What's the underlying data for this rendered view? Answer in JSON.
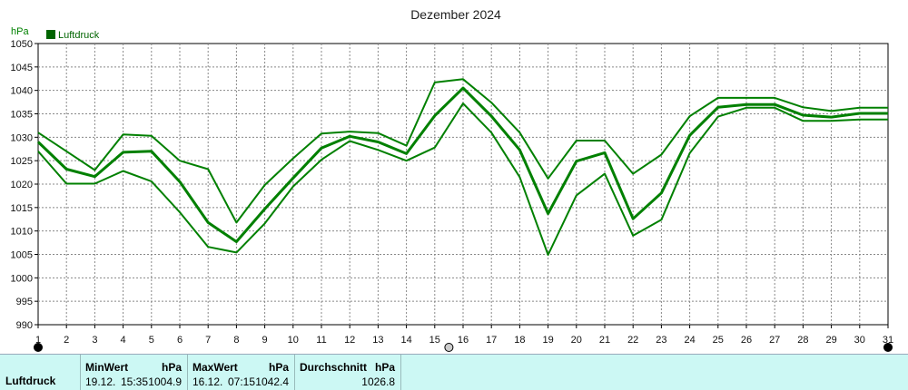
{
  "chart_data": {
    "type": "line",
    "title": "Dezember 2024",
    "ylabel": "hPa",
    "ylim": [
      990,
      1050
    ],
    "yticks": [
      990,
      995,
      1000,
      1005,
      1010,
      1015,
      1020,
      1025,
      1030,
      1035,
      1040,
      1045,
      1050
    ],
    "xticks": [
      1,
      2,
      3,
      4,
      5,
      6,
      7,
      8,
      9,
      10,
      11,
      12,
      13,
      14,
      15,
      16,
      17,
      18,
      19,
      20,
      21,
      22,
      23,
      24,
      25,
      26,
      27,
      28,
      29,
      30,
      31
    ],
    "legend": {
      "label": "Luftdruck",
      "position": "top-left"
    },
    "grid": true,
    "color": "#008000",
    "series": [
      {
        "name": "Luftdruck",
        "role": "max",
        "x": [
          1,
          2,
          3,
          4,
          5,
          6,
          7,
          8,
          9,
          10,
          11,
          12,
          13,
          14,
          15,
          16,
          17,
          18,
          19,
          20,
          21,
          22,
          23,
          24,
          25,
          26,
          27,
          28,
          29,
          30,
          31
        ],
        "values": [
          1031,
          1027,
          1023,
          1030.6,
          1030.3,
          1025,
          1023.2,
          1011.8,
          1019.8,
          1025.5,
          1030.8,
          1031.2,
          1030.9,
          1028.2,
          1041.7,
          1042.4,
          1037.4,
          1031,
          1021.2,
          1029.3,
          1029.3,
          1022.2,
          1026.3,
          1034.5,
          1038.4,
          1038.4,
          1038.4,
          1036.4,
          1035.6,
          1036.3,
          1036.3
        ]
      },
      {
        "name": "Luftdruck",
        "role": "mean",
        "x": [
          1,
          2,
          3,
          4,
          5,
          6,
          7,
          8,
          9,
          10,
          11,
          12,
          13,
          14,
          15,
          16,
          17,
          18,
          19,
          20,
          21,
          22,
          23,
          24,
          25,
          26,
          27,
          28,
          29,
          30,
          31
        ],
        "values": [
          1029,
          1023.2,
          1021.6,
          1026.8,
          1027,
          1020.5,
          1011.8,
          1007.7,
          1014.7,
          1021.3,
          1027.7,
          1030.2,
          1029,
          1026.5,
          1034.6,
          1040.5,
          1034.5,
          1027.3,
          1013.7,
          1024.9,
          1026.7,
          1012.6,
          1018.1,
          1030.4,
          1036.4,
          1037,
          1037,
          1034.7,
          1034.3,
          1035.1,
          1035.1
        ]
      },
      {
        "name": "Luftdruck",
        "role": "min",
        "x": [
          1,
          2,
          3,
          4,
          5,
          6,
          7,
          8,
          9,
          10,
          11,
          12,
          13,
          14,
          15,
          16,
          17,
          18,
          19,
          20,
          21,
          22,
          23,
          24,
          25,
          26,
          27,
          28,
          29,
          30,
          31
        ],
        "values": [
          1027,
          1020.1,
          1020.1,
          1022.8,
          1020.6,
          1014,
          1006.6,
          1005.4,
          1011.6,
          1019.5,
          1025.2,
          1029.2,
          1027.3,
          1025,
          1027.8,
          1037.2,
          1031,
          1021.5,
          1004.9,
          1017.6,
          1022.2,
          1009,
          1012.4,
          1026.6,
          1034.4,
          1036.3,
          1036.3,
          1033.5,
          1033.5,
          1033.8,
          1033.8
        ]
      }
    ]
  },
  "stats": {
    "series_name": "Luftdruck",
    "min": {
      "header": "MinWert",
      "unit": "hPa",
      "date": "19.12.",
      "time": "15:35",
      "value": "1004.9"
    },
    "max": {
      "header": "MaxWert",
      "unit": "hPa",
      "date": "16.12.",
      "time": "07:15",
      "value": "1042.4"
    },
    "avg": {
      "header": "Durchschnitt",
      "unit": "hPa",
      "value": "1026.8"
    }
  }
}
